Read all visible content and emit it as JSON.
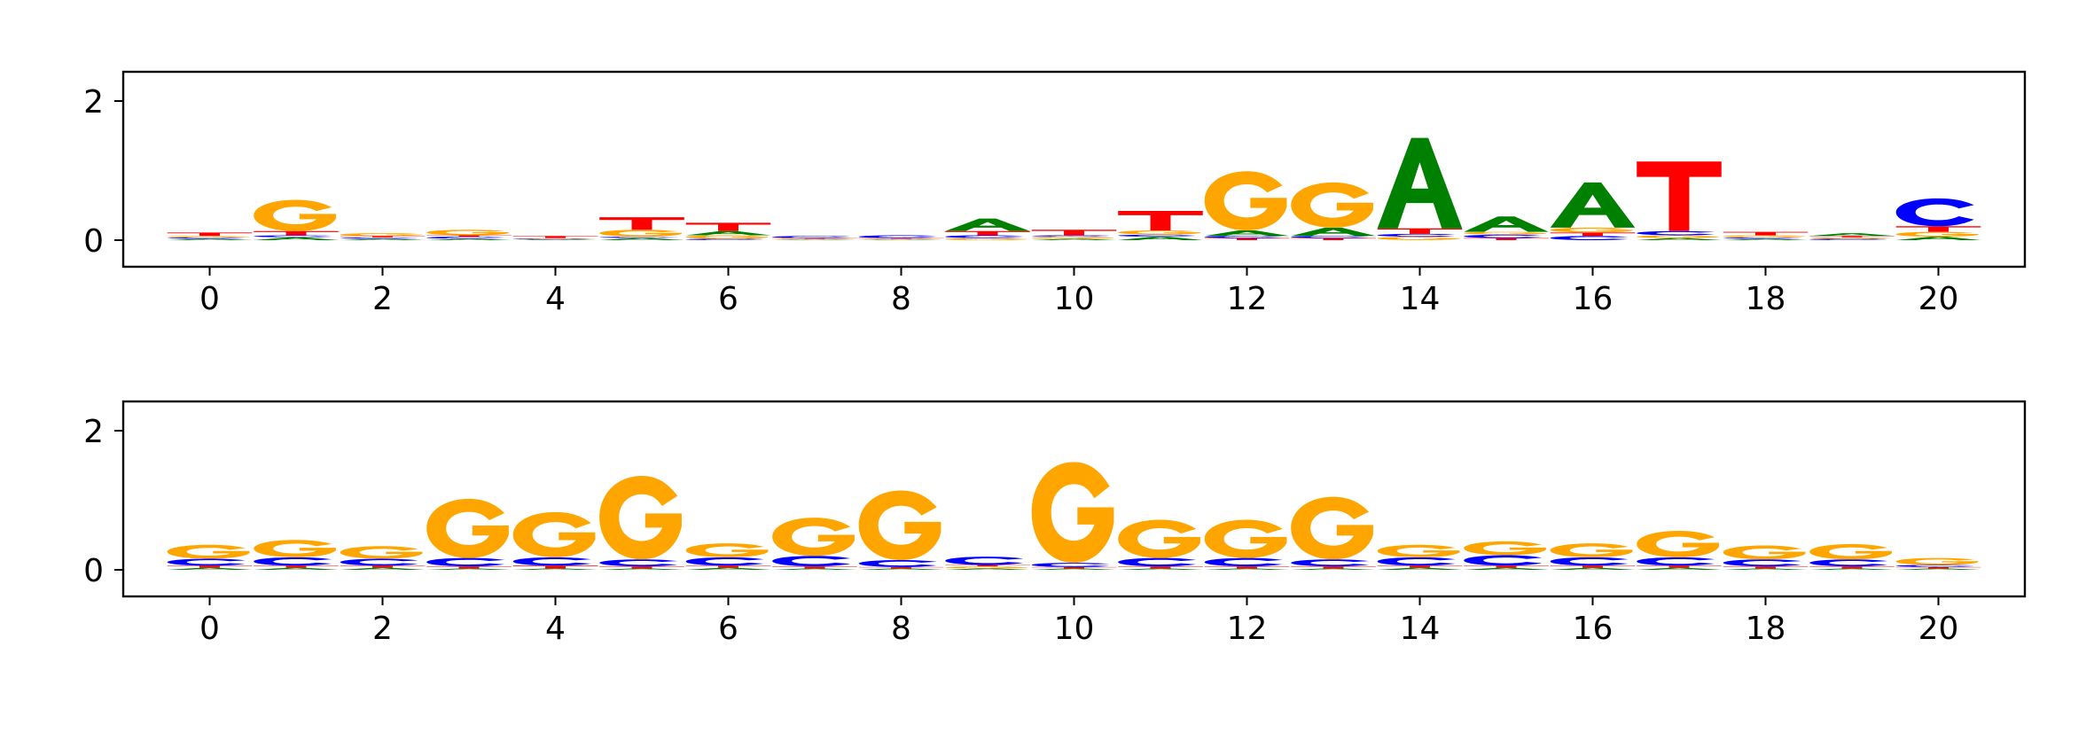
{
  "colors": {
    "A": "#008000",
    "C": "#0000ff",
    "G": "#ffa500",
    "T": "#ff0000"
  },
  "chart_data": [
    {
      "type": "sequence-logo",
      "xlim": [
        0,
        22
      ],
      "ylim": [
        0,
        2
      ],
      "xticks": [
        "0",
        "2",
        "4",
        "6",
        "8",
        "10",
        "12",
        "14",
        "16",
        "18",
        "20"
      ],
      "yticks": [
        "0",
        "2"
      ],
      "positions": [
        {
          "x": 0.5,
          "stack": [
            {
              "b": "A",
              "h": 0.02
            },
            {
              "b": "C",
              "h": 0.02
            },
            {
              "b": "G",
              "h": 0.02
            },
            {
              "b": "T",
              "h": 0.05
            }
          ]
        },
        {
          "x": 1.5,
          "stack": [
            {
              "b": "A",
              "h": 0.04
            },
            {
              "b": "C",
              "h": 0.03
            },
            {
              "b": "T",
              "h": 0.06
            },
            {
              "b": "G",
              "h": 0.45
            }
          ]
        },
        {
          "x": 2.5,
          "stack": [
            {
              "b": "A",
              "h": 0.02
            },
            {
              "b": "C",
              "h": 0.02
            },
            {
              "b": "T",
              "h": 0.02
            },
            {
              "b": "G",
              "h": 0.04
            }
          ]
        },
        {
          "x": 3.5,
          "stack": [
            {
              "b": "A",
              "h": 0.02
            },
            {
              "b": "C",
              "h": 0.03
            },
            {
              "b": "T",
              "h": 0.02
            },
            {
              "b": "G",
              "h": 0.08
            }
          ]
        },
        {
          "x": 4.5,
          "stack": [
            {
              "b": "A",
              "h": 0.01
            },
            {
              "b": "C",
              "h": 0.01
            },
            {
              "b": "G",
              "h": 0.01
            },
            {
              "b": "T",
              "h": 0.03
            }
          ]
        },
        {
          "x": 5.5,
          "stack": [
            {
              "b": "A",
              "h": 0.03
            },
            {
              "b": "C",
              "h": 0.02
            },
            {
              "b": "G",
              "h": 0.1
            },
            {
              "b": "T",
              "h": 0.18
            }
          ]
        },
        {
          "x": 6.5,
          "stack": [
            {
              "b": "C",
              "h": 0.02
            },
            {
              "b": "G",
              "h": 0.05
            },
            {
              "b": "A",
              "h": 0.06
            },
            {
              "b": "T",
              "h": 0.12
            }
          ]
        },
        {
          "x": 7.5,
          "stack": [
            {
              "b": "A",
              "h": 0.01
            },
            {
              "b": "G",
              "h": 0.01
            },
            {
              "b": "T",
              "h": 0.01
            },
            {
              "b": "C",
              "h": 0.03
            }
          ]
        },
        {
          "x": 8.5,
          "stack": [
            {
              "b": "A",
              "h": 0.01
            },
            {
              "b": "G",
              "h": 0.01
            },
            {
              "b": "T",
              "h": 0.01
            },
            {
              "b": "C",
              "h": 0.04
            }
          ]
        },
        {
          "x": 9.5,
          "stack": [
            {
              "b": "G",
              "h": 0.03
            },
            {
              "b": "C",
              "h": 0.04
            },
            {
              "b": "T",
              "h": 0.06
            },
            {
              "b": "A",
              "h": 0.18
            }
          ]
        },
        {
          "x": 10.5,
          "stack": [
            {
              "b": "A",
              "h": 0.02
            },
            {
              "b": "G",
              "h": 0.03
            },
            {
              "b": "C",
              "h": 0.02
            },
            {
              "b": "T",
              "h": 0.08
            }
          ]
        },
        {
          "x": 11.5,
          "stack": [
            {
              "b": "A",
              "h": 0.05
            },
            {
              "b": "C",
              "h": 0.03
            },
            {
              "b": "G",
              "h": 0.06
            },
            {
              "b": "T",
              "h": 0.28
            }
          ]
        },
        {
          "x": 12.5,
          "stack": [
            {
              "b": "T",
              "h": 0.03
            },
            {
              "b": "C",
              "h": 0.03
            },
            {
              "b": "A",
              "h": 0.08
            },
            {
              "b": "G",
              "h": 0.85
            }
          ]
        },
        {
          "x": 13.5,
          "stack": [
            {
              "b": "T",
              "h": 0.03
            },
            {
              "b": "C",
              "h": 0.03
            },
            {
              "b": "A",
              "h": 0.12
            },
            {
              "b": "G",
              "h": 0.65
            }
          ]
        },
        {
          "x": 14.5,
          "stack": [
            {
              "b": "G",
              "h": 0.05
            },
            {
              "b": "C",
              "h": 0.04
            },
            {
              "b": "T",
              "h": 0.08
            },
            {
              "b": "A",
              "h": 1.3
            }
          ]
        },
        {
          "x": 15.5,
          "stack": [
            {
              "b": "T",
              "h": 0.03
            },
            {
              "b": "C",
              "h": 0.05
            },
            {
              "b": "G",
              "h": 0.04
            },
            {
              "b": "A",
              "h": 0.22
            }
          ]
        },
        {
          "x": 16.5,
          "stack": [
            {
              "b": "C",
              "h": 0.06
            },
            {
              "b": "T",
              "h": 0.05
            },
            {
              "b": "G",
              "h": 0.07
            },
            {
              "b": "A",
              "h": 0.65
            }
          ]
        },
        {
          "x": 17.5,
          "stack": [
            {
              "b": "A",
              "h": 0.03
            },
            {
              "b": "G",
              "h": 0.04
            },
            {
              "b": "C",
              "h": 0.06
            },
            {
              "b": "T",
              "h": 1.0
            }
          ]
        },
        {
          "x": 18.5,
          "stack": [
            {
              "b": "A",
              "h": 0.02
            },
            {
              "b": "C",
              "h": 0.02
            },
            {
              "b": "G",
              "h": 0.03
            },
            {
              "b": "T",
              "h": 0.05
            }
          ]
        },
        {
          "x": 19.5,
          "stack": [
            {
              "b": "C",
              "h": 0.02
            },
            {
              "b": "G",
              "h": 0.02
            },
            {
              "b": "T",
              "h": 0.02
            },
            {
              "b": "A",
              "h": 0.04
            }
          ]
        },
        {
          "x": 20.5,
          "stack": [
            {
              "b": "A",
              "h": 0.05
            },
            {
              "b": "G",
              "h": 0.07
            },
            {
              "b": "T",
              "h": 0.08
            },
            {
              "b": "C",
              "h": 0.4
            }
          ]
        }
      ]
    },
    {
      "type": "sequence-logo",
      "xlim": [
        0,
        22
      ],
      "ylim": [
        0,
        2
      ],
      "xticks": [
        "0",
        "2",
        "4",
        "6",
        "8",
        "10",
        "12",
        "14",
        "16",
        "18",
        "20"
      ],
      "yticks": [
        "0",
        "2"
      ],
      "positions": [
        {
          "x": 0.5,
          "stack": [
            {
              "b": "A",
              "h": 0.03
            },
            {
              "b": "T",
              "h": 0.03
            },
            {
              "b": "C",
              "h": 0.1
            },
            {
              "b": "G",
              "h": 0.2
            }
          ]
        },
        {
          "x": 1.5,
          "stack": [
            {
              "b": "A",
              "h": 0.03
            },
            {
              "b": "T",
              "h": 0.03
            },
            {
              "b": "C",
              "h": 0.12
            },
            {
              "b": "G",
              "h": 0.25
            }
          ]
        },
        {
          "x": 2.5,
          "stack": [
            {
              "b": "A",
              "h": 0.03
            },
            {
              "b": "T",
              "h": 0.03
            },
            {
              "b": "C",
              "h": 0.1
            },
            {
              "b": "G",
              "h": 0.18
            }
          ]
        },
        {
          "x": 3.5,
          "stack": [
            {
              "b": "A",
              "h": 0.02
            },
            {
              "b": "T",
              "h": 0.03
            },
            {
              "b": "C",
              "h": 0.12
            },
            {
              "b": "G",
              "h": 0.85
            }
          ]
        },
        {
          "x": 4.5,
          "stack": [
            {
              "b": "A",
              "h": 0.02
            },
            {
              "b": "T",
              "h": 0.04
            },
            {
              "b": "C",
              "h": 0.12
            },
            {
              "b": "G",
              "h": 0.65
            }
          ]
        },
        {
          "x": 5.5,
          "stack": [
            {
              "b": "A",
              "h": 0.02
            },
            {
              "b": "T",
              "h": 0.03
            },
            {
              "b": "C",
              "h": 0.1
            },
            {
              "b": "G",
              "h": 1.2
            }
          ]
        },
        {
          "x": 6.5,
          "stack": [
            {
              "b": "A",
              "h": 0.03
            },
            {
              "b": "T",
              "h": 0.03
            },
            {
              "b": "C",
              "h": 0.12
            },
            {
              "b": "G",
              "h": 0.2
            }
          ]
        },
        {
          "x": 7.5,
          "stack": [
            {
              "b": "A",
              "h": 0.02
            },
            {
              "b": "T",
              "h": 0.03
            },
            {
              "b": "C",
              "h": 0.15
            },
            {
              "b": "G",
              "h": 0.55
            }
          ]
        },
        {
          "x": 8.5,
          "stack": [
            {
              "b": "A",
              "h": 0.02
            },
            {
              "b": "T",
              "h": 0.02
            },
            {
              "b": "C",
              "h": 0.1
            },
            {
              "b": "G",
              "h": 1.0
            }
          ]
        },
        {
          "x": 9.5,
          "stack": [
            {
              "b": "A",
              "h": 0.02
            },
            {
              "b": "G",
              "h": 0.03
            },
            {
              "b": "T",
              "h": 0.02
            },
            {
              "b": "C",
              "h": 0.12
            }
          ]
        },
        {
          "x": 10.5,
          "stack": [
            {
              "b": "A",
              "h": 0.02
            },
            {
              "b": "T",
              "h": 0.02
            },
            {
              "b": "C",
              "h": 0.06
            },
            {
              "b": "G",
              "h": 1.45
            }
          ]
        },
        {
          "x": 11.5,
          "stack": [
            {
              "b": "A",
              "h": 0.02
            },
            {
              "b": "T",
              "h": 0.03
            },
            {
              "b": "C",
              "h": 0.12
            },
            {
              "b": "G",
              "h": 0.55
            }
          ]
        },
        {
          "x": 12.5,
          "stack": [
            {
              "b": "A",
              "h": 0.02
            },
            {
              "b": "T",
              "h": 0.03
            },
            {
              "b": "C",
              "h": 0.12
            },
            {
              "b": "G",
              "h": 0.55
            }
          ]
        },
        {
          "x": 13.5,
          "stack": [
            {
              "b": "A",
              "h": 0.02
            },
            {
              "b": "T",
              "h": 0.03
            },
            {
              "b": "C",
              "h": 0.1
            },
            {
              "b": "G",
              "h": 0.9
            }
          ]
        },
        {
          "x": 14.5,
          "stack": [
            {
              "b": "A",
              "h": 0.03
            },
            {
              "b": "T",
              "h": 0.03
            },
            {
              "b": "C",
              "h": 0.12
            },
            {
              "b": "G",
              "h": 0.18
            }
          ]
        },
        {
          "x": 15.5,
          "stack": [
            {
              "b": "A",
              "h": 0.03
            },
            {
              "b": "T",
              "h": 0.03
            },
            {
              "b": "C",
              "h": 0.15
            },
            {
              "b": "G",
              "h": 0.2
            }
          ]
        },
        {
          "x": 16.5,
          "stack": [
            {
              "b": "A",
              "h": 0.03
            },
            {
              "b": "T",
              "h": 0.03
            },
            {
              "b": "C",
              "h": 0.12
            },
            {
              "b": "G",
              "h": 0.2
            }
          ]
        },
        {
          "x": 17.5,
          "stack": [
            {
              "b": "A",
              "h": 0.03
            },
            {
              "b": "T",
              "h": 0.03
            },
            {
              "b": "C",
              "h": 0.12
            },
            {
              "b": "G",
              "h": 0.38
            }
          ]
        },
        {
          "x": 18.5,
          "stack": [
            {
              "b": "A",
              "h": 0.02
            },
            {
              "b": "T",
              "h": 0.03
            },
            {
              "b": "C",
              "h": 0.1
            },
            {
              "b": "G",
              "h": 0.2
            }
          ]
        },
        {
          "x": 19.5,
          "stack": [
            {
              "b": "A",
              "h": 0.02
            },
            {
              "b": "T",
              "h": 0.03
            },
            {
              "b": "C",
              "h": 0.1
            },
            {
              "b": "G",
              "h": 0.22
            }
          ]
        },
        {
          "x": 20.5,
          "stack": [
            {
              "b": "A",
              "h": 0.02
            },
            {
              "b": "T",
              "h": 0.02
            },
            {
              "b": "C",
              "h": 0.03
            },
            {
              "b": "G",
              "h": 0.1
            }
          ]
        }
      ]
    }
  ]
}
